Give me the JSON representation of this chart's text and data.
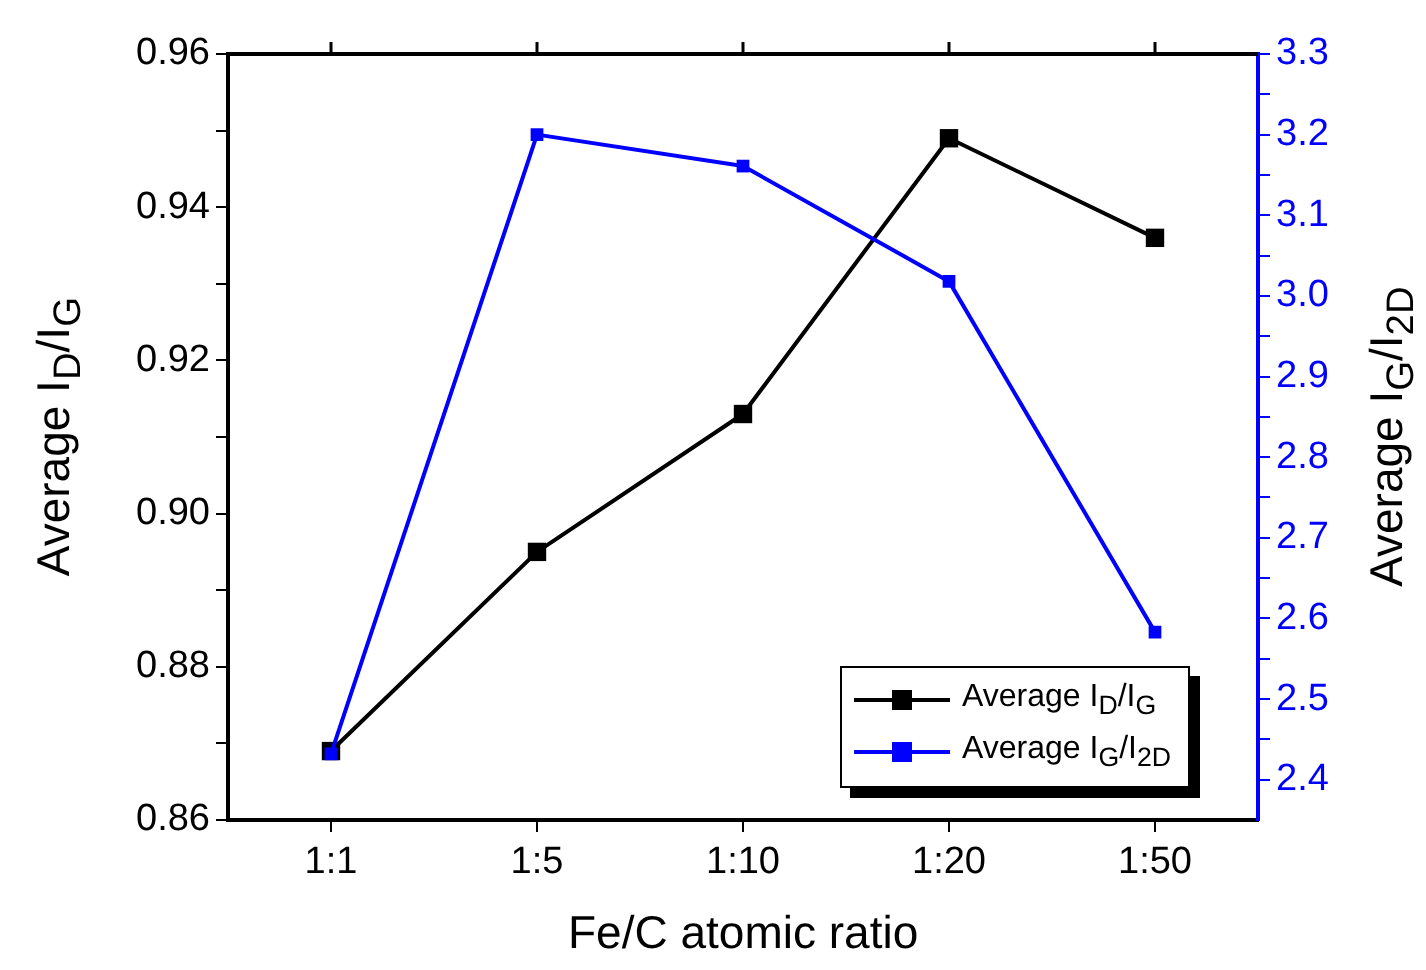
{
  "chart_data": {
    "type": "line",
    "xlabel": "Fe/C atomic ratio",
    "ylabel": "Average I$_{D}$/I$_{G}$",
    "y2label": "Average I$_{G}$/I$_{2D}$",
    "categories": [
      "1:1",
      "1:5",
      "1:10",
      "1:20",
      "1:50"
    ],
    "series": [
      {
        "name": "Average I$_{D}$/I$_{G}$",
        "color": "#000000",
        "values": [
          0.869,
          0.895,
          0.913,
          0.949,
          0.936
        ]
      },
      {
        "name": "Average I$_{G}$/I$_{2D}$",
        "color": "#0000ff",
        "axis": "y2",
        "values": [
          2.432,
          3.2,
          3.161,
          3.018,
          2.583
        ]
      }
    ],
    "ylim": [
      0.86,
      0.96
    ],
    "yticks": [
      0.86,
      {
        "value": 0.87,
        "label": null
      },
      0.88,
      {
        "value": 0.89,
        "label": null
      },
      {
        "value": 0.9,
        "label": "0.90"
      },
      {
        "value": 0.91,
        "label": null
      },
      0.92,
      {
        "value": 0.93,
        "label": null
      },
      0.94,
      {
        "value": 0.95,
        "label": null
      },
      0.96
    ],
    "y2lim": [
      2.35,
      3.3
    ],
    "y2ticks": [
      2.4,
      {
        "value": 2.45,
        "label": null
      },
      2.5,
      {
        "value": 2.55,
        "label": null
      },
      2.6,
      {
        "value": 2.65,
        "label": null
      },
      2.7,
      {
        "value": 2.75,
        "label": null
      },
      2.8,
      {
        "value": 2.85,
        "label": null
      },
      2.9,
      {
        "value": 2.95,
        "label": null
      },
      {
        "value": 3,
        "label": "3.0"
      },
      {
        "value": 3.05,
        "label": null
      },
      3.1,
      {
        "value": 3.15,
        "label": null
      },
      3.2,
      {
        "value": 3.25,
        "label": null
      },
      3.3
    ],
    "marker": "square",
    "line_style": "solid",
    "grid": false,
    "legend": "bottom right"
  }
}
